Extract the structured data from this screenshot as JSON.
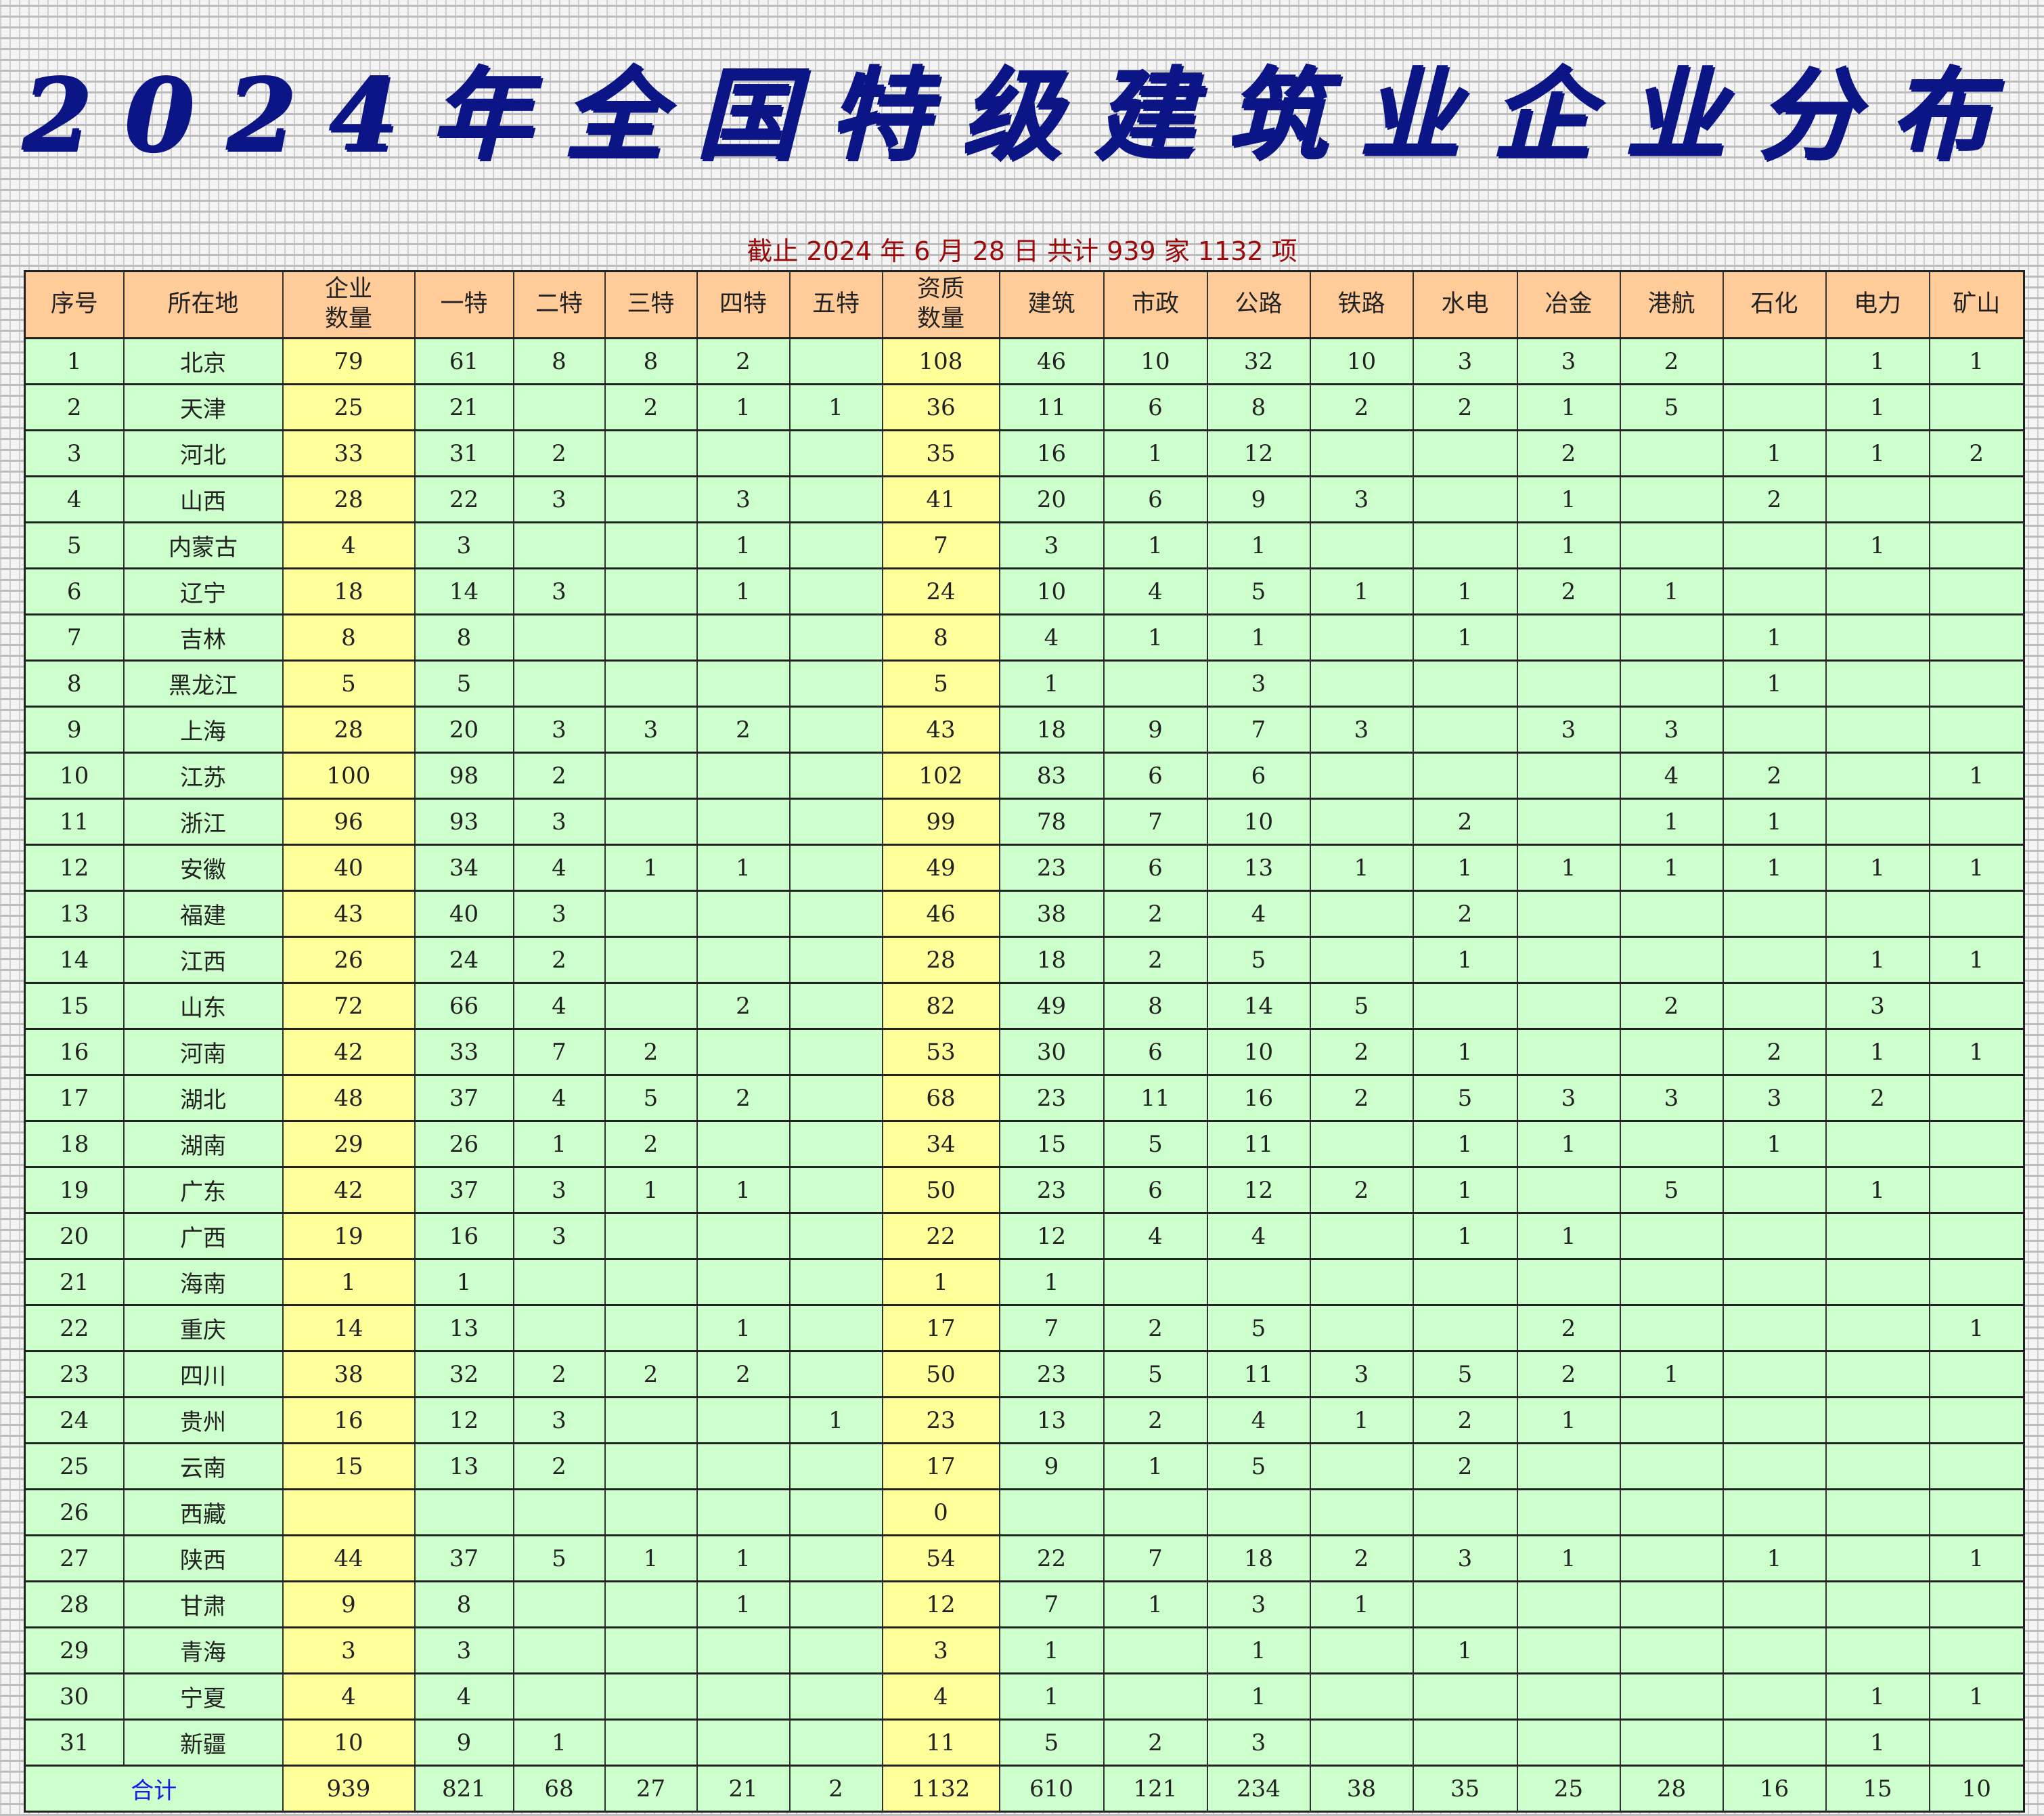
{
  "title": "2024年全国特级建筑业企业分布",
  "subtitle": "截止 2024 年 6 月 28 日  共计 939 家 1132 项",
  "colors": {
    "header_bg": "#ffcc99",
    "row_bg": "#ccffcc",
    "highlight_bg": "#ffff99",
    "title": "#0c1586",
    "subtitle": "#9a0c0c",
    "total_label": "#1a1ae6"
  },
  "headers": [
    "序号",
    "所在地",
    "企业\n数量",
    "一特",
    "二特",
    "三特",
    "四特",
    "五特",
    "资质\n数量",
    "建筑",
    "市政",
    "公路",
    "铁路",
    "水电",
    "冶金",
    "港航",
    "石化",
    "电力",
    "矿山"
  ],
  "rows": [
    [
      "1",
      "北京",
      "79",
      "61",
      "8",
      "8",
      "2",
      "",
      "108",
      "46",
      "10",
      "32",
      "10",
      "3",
      "3",
      "2",
      "",
      "1",
      "1"
    ],
    [
      "2",
      "天津",
      "25",
      "21",
      "",
      "2",
      "1",
      "1",
      "36",
      "11",
      "6",
      "8",
      "2",
      "2",
      "1",
      "5",
      "",
      "1",
      ""
    ],
    [
      "3",
      "河北",
      "33",
      "31",
      "2",
      "",
      "",
      "",
      "35",
      "16",
      "1",
      "12",
      "",
      "",
      "2",
      "",
      "1",
      "1",
      "2"
    ],
    [
      "4",
      "山西",
      "28",
      "22",
      "3",
      "",
      "3",
      "",
      "41",
      "20",
      "6",
      "9",
      "3",
      "",
      "1",
      "",
      "2",
      "",
      ""
    ],
    [
      "5",
      "内蒙古",
      "4",
      "3",
      "",
      "",
      "1",
      "",
      "7",
      "3",
      "1",
      "1",
      "",
      "",
      "1",
      "",
      "",
      "1",
      ""
    ],
    [
      "6",
      "辽宁",
      "18",
      "14",
      "3",
      "",
      "1",
      "",
      "24",
      "10",
      "4",
      "5",
      "1",
      "1",
      "2",
      "1",
      "",
      "",
      ""
    ],
    [
      "7",
      "吉林",
      "8",
      "8",
      "",
      "",
      "",
      "",
      "8",
      "4",
      "1",
      "1",
      "",
      "1",
      "",
      "",
      "1",
      "",
      ""
    ],
    [
      "8",
      "黑龙江",
      "5",
      "5",
      "",
      "",
      "",
      "",
      "5",
      "1",
      "",
      "3",
      "",
      "",
      "",
      "",
      "1",
      "",
      ""
    ],
    [
      "9",
      "上海",
      "28",
      "20",
      "3",
      "3",
      "2",
      "",
      "43",
      "18",
      "9",
      "7",
      "3",
      "",
      "3",
      "3",
      "",
      "",
      ""
    ],
    [
      "10",
      "江苏",
      "100",
      "98",
      "2",
      "",
      "",
      "",
      "102",
      "83",
      "6",
      "6",
      "",
      "",
      "",
      "4",
      "2",
      "",
      "1"
    ],
    [
      "11",
      "浙江",
      "96",
      "93",
      "3",
      "",
      "",
      "",
      "99",
      "78",
      "7",
      "10",
      "",
      "2",
      "",
      "1",
      "1",
      "",
      ""
    ],
    [
      "12",
      "安徽",
      "40",
      "34",
      "4",
      "1",
      "1",
      "",
      "49",
      "23",
      "6",
      "13",
      "1",
      "1",
      "1",
      "1",
      "1",
      "1",
      "1"
    ],
    [
      "13",
      "福建",
      "43",
      "40",
      "3",
      "",
      "",
      "",
      "46",
      "38",
      "2",
      "4",
      "",
      "2",
      "",
      "",
      "",
      "",
      ""
    ],
    [
      "14",
      "江西",
      "26",
      "24",
      "2",
      "",
      "",
      "",
      "28",
      "18",
      "2",
      "5",
      "",
      "1",
      "",
      "",
      "",
      "1",
      "1"
    ],
    [
      "15",
      "山东",
      "72",
      "66",
      "4",
      "",
      "2",
      "",
      "82",
      "49",
      "8",
      "14",
      "5",
      "",
      "",
      "2",
      "",
      "3",
      ""
    ],
    [
      "16",
      "河南",
      "42",
      "33",
      "7",
      "2",
      "",
      "",
      "53",
      "30",
      "6",
      "10",
      "2",
      "1",
      "",
      "",
      "2",
      "1",
      "1"
    ],
    [
      "17",
      "湖北",
      "48",
      "37",
      "4",
      "5",
      "2",
      "",
      "68",
      "23",
      "11",
      "16",
      "2",
      "5",
      "3",
      "3",
      "3",
      "2",
      ""
    ],
    [
      "18",
      "湖南",
      "29",
      "26",
      "1",
      "2",
      "",
      "",
      "34",
      "15",
      "5",
      "11",
      "",
      "1",
      "1",
      "",
      "1",
      "",
      ""
    ],
    [
      "19",
      "广东",
      "42",
      "37",
      "3",
      "1",
      "1",
      "",
      "50",
      "23",
      "6",
      "12",
      "2",
      "1",
      "",
      "5",
      "",
      "1",
      ""
    ],
    [
      "20",
      "广西",
      "19",
      "16",
      "3",
      "",
      "",
      "",
      "22",
      "12",
      "4",
      "4",
      "",
      "1",
      "1",
      "",
      "",
      "",
      ""
    ],
    [
      "21",
      "海南",
      "1",
      "1",
      "",
      "",
      "",
      "",
      "1",
      "1",
      "",
      "",
      "",
      "",
      "",
      "",
      "",
      "",
      ""
    ],
    [
      "22",
      "重庆",
      "14",
      "13",
      "",
      "",
      "1",
      "",
      "17",
      "7",
      "2",
      "5",
      "",
      "",
      "2",
      "",
      "",
      "",
      "1"
    ],
    [
      "23",
      "四川",
      "38",
      "32",
      "2",
      "2",
      "2",
      "",
      "50",
      "23",
      "5",
      "11",
      "3",
      "5",
      "2",
      "1",
      "",
      "",
      ""
    ],
    [
      "24",
      "贵州",
      "16",
      "12",
      "3",
      "",
      "",
      "1",
      "23",
      "13",
      "2",
      "4",
      "1",
      "2",
      "1",
      "",
      "",
      "",
      ""
    ],
    [
      "25",
      "云南",
      "15",
      "13",
      "2",
      "",
      "",
      "",
      "17",
      "9",
      "1",
      "5",
      "",
      "2",
      "",
      "",
      "",
      "",
      ""
    ],
    [
      "26",
      "西藏",
      "",
      "",
      "",
      "",
      "",
      "",
      "0",
      "",
      "",
      "",
      "",
      "",
      "",
      "",
      "",
      "",
      ""
    ],
    [
      "27",
      "陕西",
      "44",
      "37",
      "5",
      "1",
      "1",
      "",
      "54",
      "22",
      "7",
      "18",
      "2",
      "3",
      "1",
      "",
      "1",
      "",
      "1"
    ],
    [
      "28",
      "甘肃",
      "9",
      "8",
      "",
      "",
      "1",
      "",
      "12",
      "7",
      "1",
      "3",
      "1",
      "",
      "",
      "",
      "",
      "",
      ""
    ],
    [
      "29",
      "青海",
      "3",
      "3",
      "",
      "",
      "",
      "",
      "3",
      "1",
      "",
      "1",
      "",
      "1",
      "",
      "",
      "",
      "",
      ""
    ],
    [
      "30",
      "宁夏",
      "4",
      "4",
      "",
      "",
      "",
      "",
      "4",
      "1",
      "",
      "1",
      "",
      "",
      "",
      "",
      "",
      "1",
      "1"
    ],
    [
      "31",
      "新疆",
      "10",
      "9",
      "1",
      "",
      "",
      "",
      "11",
      "5",
      "2",
      "3",
      "",
      "",
      "",
      "",
      "",
      "1",
      ""
    ]
  ],
  "total": {
    "label": "合计",
    "values": [
      "939",
      "821",
      "68",
      "27",
      "21",
      "2",
      "1132",
      "610",
      "121",
      "234",
      "38",
      "35",
      "25",
      "28",
      "16",
      "15",
      "10"
    ]
  }
}
